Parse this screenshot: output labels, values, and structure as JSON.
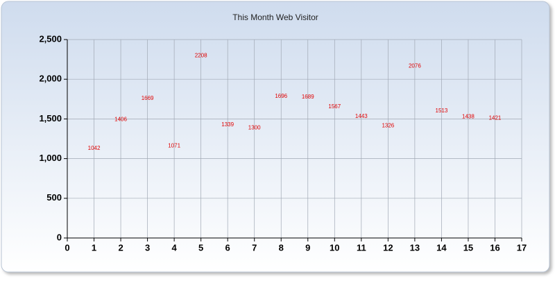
{
  "chart_data": {
    "type": "scatter",
    "title": "This Month Web Visitor",
    "x": [
      1,
      2,
      3,
      4,
      5,
      6,
      7,
      8,
      9,
      10,
      11,
      12,
      13,
      14,
      15,
      16
    ],
    "values": [
      1042,
      1406,
      1669,
      1071,
      2208,
      1339,
      1300,
      1696,
      1689,
      1567,
      1443,
      1326,
      2076,
      1513,
      1438,
      1421
    ],
    "color": "#e00000",
    "xlim": [
      0,
      17
    ],
    "xticks": [
      0,
      1,
      2,
      3,
      4,
      5,
      6,
      7,
      8,
      9,
      10,
      11,
      12,
      13,
      14,
      15,
      16,
      17
    ],
    "ylim": [
      0,
      2500
    ],
    "yticks": [
      0,
      500,
      {
        "value": 1000,
        "label": "1,000"
      },
      {
        "value": 1500,
        "label": "1,500"
      },
      {
        "value": 2000,
        "label": "2,000"
      },
      {
        "value": 2500,
        "label": "2,500"
      }
    ],
    "grid": true
  }
}
